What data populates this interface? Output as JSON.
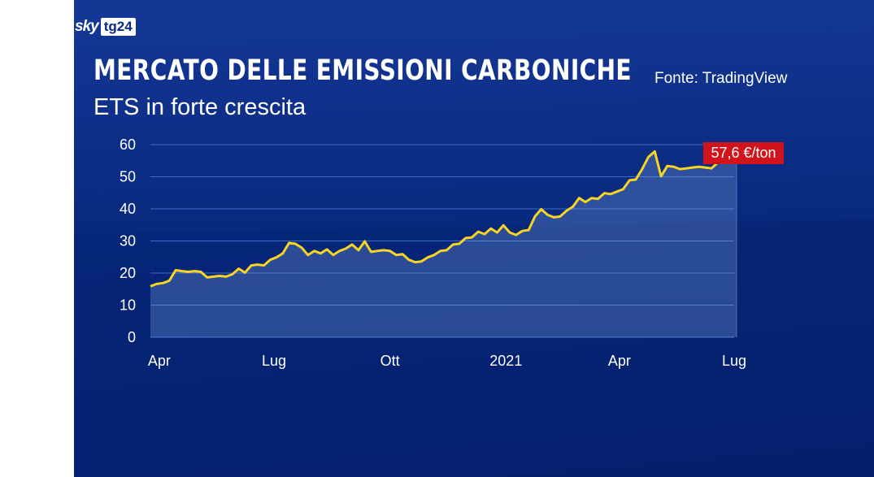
{
  "header": {
    "logo_sky": "sky",
    "logo_tg": "tg24",
    "title": "MERCATO DELLE EMISSIONI CARBONICHE",
    "subtitle": "ETS in forte crescita",
    "source": "Fonte: TradingView"
  },
  "colors": {
    "background": "#062679",
    "line": "#f5d423",
    "badge": "#d1141b",
    "grid": "#3e6ac8"
  },
  "chart_data": {
    "type": "area",
    "title": "MERCATO DELLE EMISSIONI CARBONICHE",
    "subtitle": "ETS in forte crescita",
    "xlabel": "",
    "ylabel": "",
    "ylim": [
      0,
      60
    ],
    "yticks": [
      0,
      10,
      20,
      30,
      40,
      50,
      60
    ],
    "xticks": [
      {
        "label": "Apr",
        "date": "2020-04-01"
      },
      {
        "label": "Lug",
        "date": "2020-07-01"
      },
      {
        "label": "Ott",
        "date": "2020-10-01"
      },
      {
        "label": "2021",
        "date": "2021-01-01"
      },
      {
        "label": "Apr",
        "date": "2021-04-01"
      },
      {
        "label": "Lug",
        "date": "2021-07-01"
      }
    ],
    "xlim": [
      "2020-03-25",
      "2021-07-01"
    ],
    "grid": true,
    "last_value_label": "57,6 €/ton",
    "series": [
      {
        "x": [
          "2020-03-25",
          "2020-03-30",
          "2020-04-04",
          "2020-04-09",
          "2020-04-14",
          "2020-04-19",
          "2020-04-24",
          "2020-04-29",
          "2020-05-04",
          "2020-05-09",
          "2020-05-14",
          "2020-05-19",
          "2020-05-24",
          "2020-05-29",
          "2020-06-03",
          "2020-06-08",
          "2020-06-13",
          "2020-06-18",
          "2020-06-23",
          "2020-06-28",
          "2020-07-03",
          "2020-07-08",
          "2020-07-13",
          "2020-07-18",
          "2020-07-23",
          "2020-07-28",
          "2020-08-02",
          "2020-08-07",
          "2020-08-12",
          "2020-08-17",
          "2020-08-22",
          "2020-08-27",
          "2020-09-01",
          "2020-09-06",
          "2020-09-11",
          "2020-09-16",
          "2020-09-21",
          "2020-09-26",
          "2020-10-01",
          "2020-10-06",
          "2020-10-11",
          "2020-10-16",
          "2020-10-21",
          "2020-10-26",
          "2020-10-31",
          "2020-11-05",
          "2020-11-10",
          "2020-11-15",
          "2020-11-20",
          "2020-11-25",
          "2020-11-30",
          "2020-12-05",
          "2020-12-10",
          "2020-12-15",
          "2020-12-20",
          "2020-12-25",
          "2020-12-30",
          "2021-01-04",
          "2021-01-09",
          "2021-01-14",
          "2021-01-19",
          "2021-01-24",
          "2021-01-29",
          "2021-02-03",
          "2021-02-08",
          "2021-02-13",
          "2021-02-18",
          "2021-02-23",
          "2021-02-28",
          "2021-03-05",
          "2021-03-10",
          "2021-03-15",
          "2021-03-20",
          "2021-03-25",
          "2021-03-30",
          "2021-04-04",
          "2021-04-09",
          "2021-04-14",
          "2021-04-19",
          "2021-04-24",
          "2021-04-29",
          "2021-05-04",
          "2021-05-09",
          "2021-05-14",
          "2021-05-19",
          "2021-05-24",
          "2021-05-29",
          "2021-06-03",
          "2021-06-08",
          "2021-06-13",
          "2021-06-18",
          "2021-06-23",
          "2021-06-28",
          "2021-07-03"
        ],
        "values": [
          15.5,
          17.0,
          16.5,
          18.0,
          20.5,
          21.0,
          20.0,
          21.0,
          20.0,
          19.0,
          18.5,
          19.5,
          18.5,
          20.0,
          21.0,
          20.5,
          22.0,
          23.0,
          22.0,
          24.5,
          24.5,
          26.5,
          29.0,
          29.5,
          27.5,
          26.0,
          26.5,
          26.5,
          27.0,
          26.0,
          26.5,
          28.0,
          28.5,
          27.5,
          29.5,
          27.0,
          26.5,
          27.5,
          26.5,
          26.0,
          25.5,
          24.5,
          23.0,
          24.0,
          24.5,
          26.0,
          26.5,
          27.5,
          28.5,
          29.5,
          30.5,
          31.5,
          32.5,
          32.5,
          33.5,
          33.0,
          34.5,
          33.0,
          31.5,
          33.5,
          33.0,
          38.0,
          39.5,
          38.5,
          37.0,
          38.0,
          39.0,
          41.0,
          43.0,
          42.5,
          43.0,
          43.5,
          44.5,
          45.0,
          45.0,
          46.5,
          48.5,
          49.5,
          52.0,
          56.5,
          57.5,
          50.5,
          53.0,
          53.5,
          52.0,
          53.0,
          52.5,
          53.5,
          52.5,
          53.0,
          54.0,
          56.5,
          56.0,
          57.6
        ]
      }
    ]
  }
}
